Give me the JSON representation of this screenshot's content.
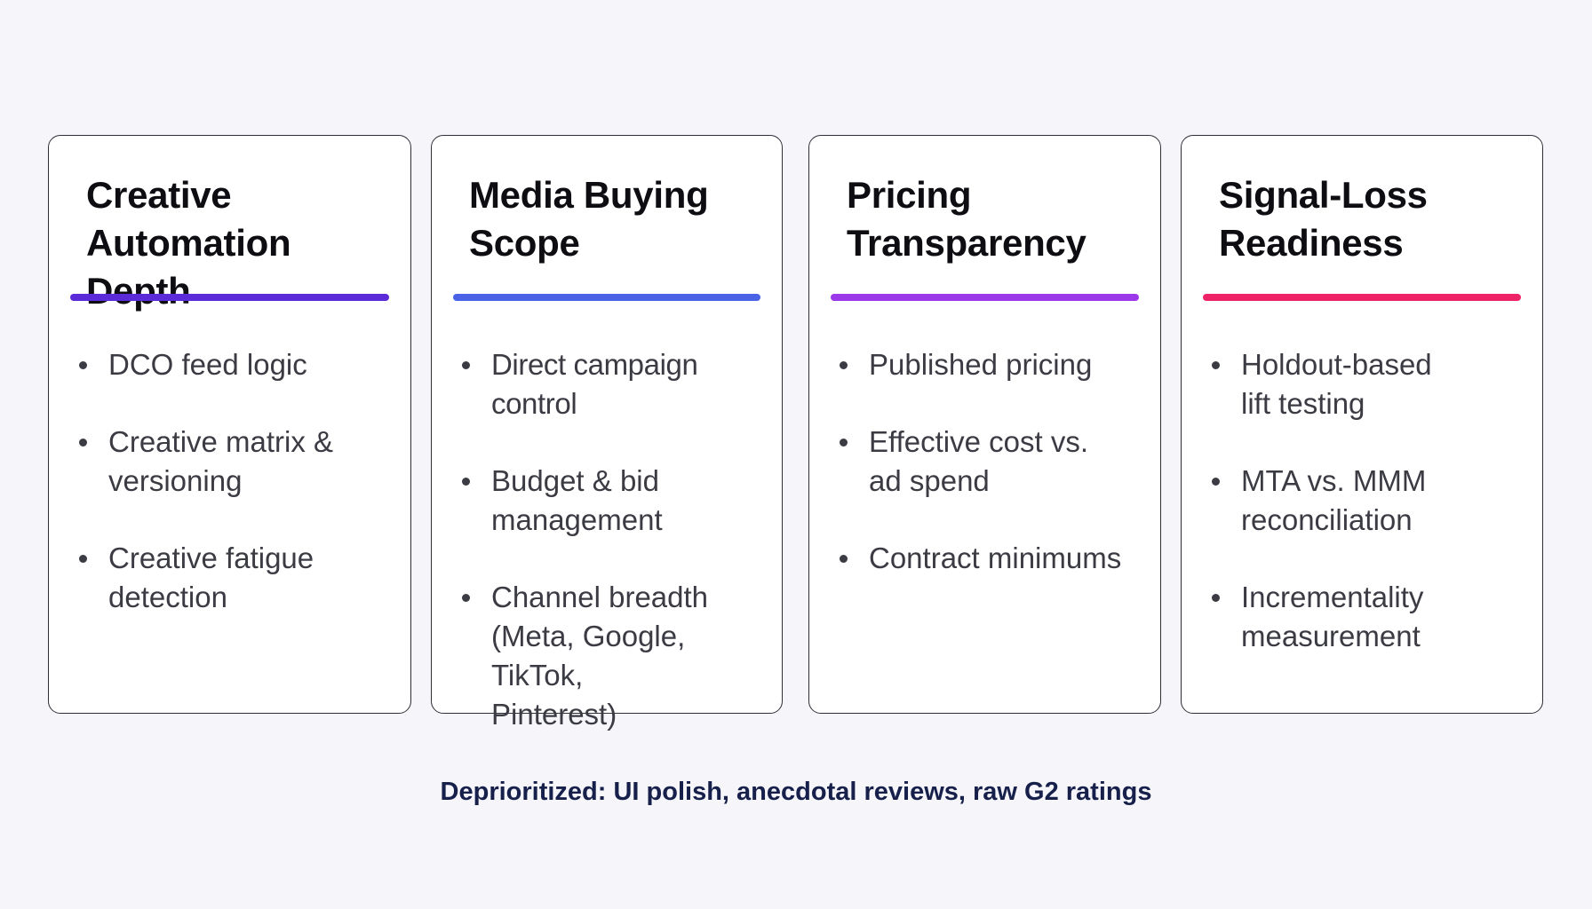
{
  "cards": [
    {
      "title": "Creative\nAutomation Depth",
      "accent": "#5b2bd9",
      "items": [
        "DCO feed logic",
        "Creative matrix &\nversioning",
        "Creative fatigue\ndetection"
      ]
    },
    {
      "title": "Media Buying\nScope",
      "accent": "#4a62e6",
      "items": [
        "Direct campaign control",
        "Budget & bid\nmanagement",
        "Channel breadth\n(Meta, Google, TikTok,\nPinterest)"
      ]
    },
    {
      "title": "Pricing\nTransparency",
      "accent": "#9a38ea",
      "items": [
        "Published pricing",
        "Effective cost vs.\nad spend",
        "Contract minimums"
      ]
    },
    {
      "title": "Signal-Loss\nReadiness",
      "accent": "#ee2266",
      "items": [
        "Holdout-based\nlift testing",
        "MTA vs. MMM\nreconciliation",
        "Incrementality\nmeasurement"
      ]
    }
  ],
  "footer": {
    "note": "Deprioritized: UI polish, anecdotal reviews, raw G2 ratings"
  }
}
